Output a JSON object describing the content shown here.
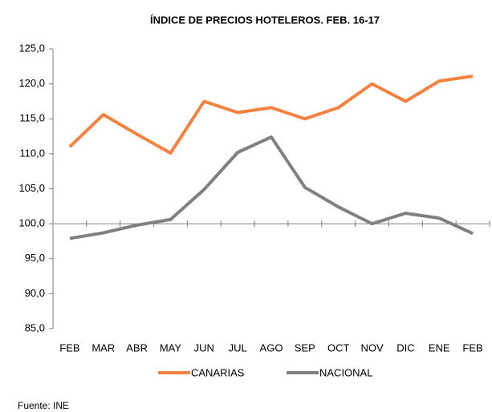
{
  "chart_data": {
    "type": "line",
    "title": "ÍNDICE DE PRECIOS HOTELEROS. FEB. 16-17",
    "categories": [
      "FEB",
      "MAR",
      "ABR",
      "MAY",
      "JUN",
      "JUL",
      "AGO",
      "SEP",
      "OCT",
      "NOV",
      "DIC",
      "ENE",
      "FEB"
    ],
    "series": [
      {
        "name": "CANARIAS",
        "color": "#f4813f",
        "values": [
          111.0,
          115.6,
          112.8,
          110.1,
          117.5,
          115.9,
          116.6,
          115.0,
          116.6,
          120.0,
          117.5,
          120.4,
          121.1
        ]
      },
      {
        "name": "NACIONAL",
        "color": "#808080",
        "values": [
          97.9,
          98.7,
          99.8,
          100.6,
          104.9,
          110.2,
          112.4,
          105.2,
          102.4,
          100.0,
          101.5,
          100.8,
          98.6
        ]
      }
    ],
    "ylim": [
      85,
      125
    ],
    "yticks": [
      {
        "value": 85,
        "label": "85,0"
      },
      {
        "value": 90,
        "label": "90,0"
      },
      {
        "value": 95,
        "label": "95,0"
      },
      {
        "value": 100,
        "label": "100,0"
      },
      {
        "value": 105,
        "label": "105,0"
      },
      {
        "value": 110,
        "label": "110,0"
      },
      {
        "value": 115,
        "label": "115,0"
      },
      {
        "value": 120,
        "label": "120,0"
      },
      {
        "value": 125,
        "label": "125,0"
      }
    ],
    "x_axis_crosses": 100,
    "legend": "bottom",
    "source": "Fuente: INE"
  }
}
